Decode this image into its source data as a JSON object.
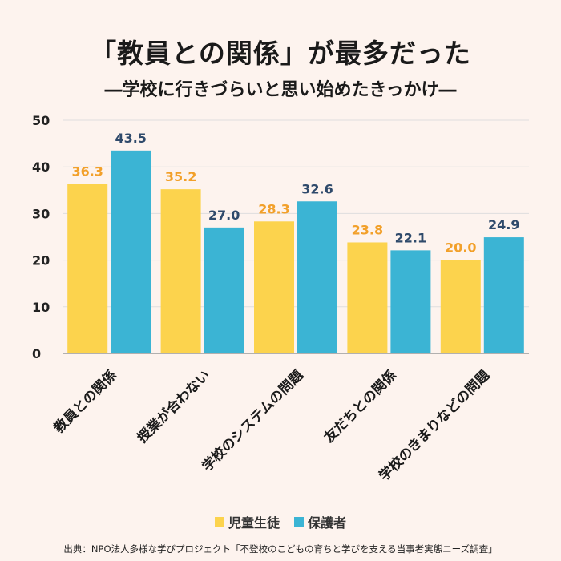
{
  "title": "「教員との関係」が最多だった",
  "subtitle": "―学校に行きづらいと思い始めたきっかけ―",
  "source": "出典：NPO法人多様な学びプロジェクト「不登校のこどもの育ちと学びを支える当事者実態ニーズ調査」",
  "colors": {
    "students": "#fcd34d",
    "parents": "#3bb4d4",
    "students_label": "#f2a02a",
    "parents_label": "#2f4a6b"
  },
  "chart_data": {
    "type": "bar",
    "title": "「教員との関係」が最多だった",
    "subtitle": "―学校に行きづらいと思い始めたきっかけ―",
    "categories": [
      "教員との関係",
      "授業が合わない",
      "学校のシステムの問題",
      "友だちとの関係",
      "学校のきまりなどの問題"
    ],
    "series": [
      {
        "name": "児童生徒",
        "values": [
          36.3,
          35.2,
          28.3,
          23.8,
          20.0
        ]
      },
      {
        "name": "保護者",
        "values": [
          43.5,
          27.0,
          32.6,
          22.1,
          24.9
        ]
      }
    ],
    "ylim": [
      0,
      50
    ],
    "yticks": [
      0,
      10,
      20,
      30,
      40,
      50
    ],
    "grid": true,
    "legend": "bottom"
  }
}
